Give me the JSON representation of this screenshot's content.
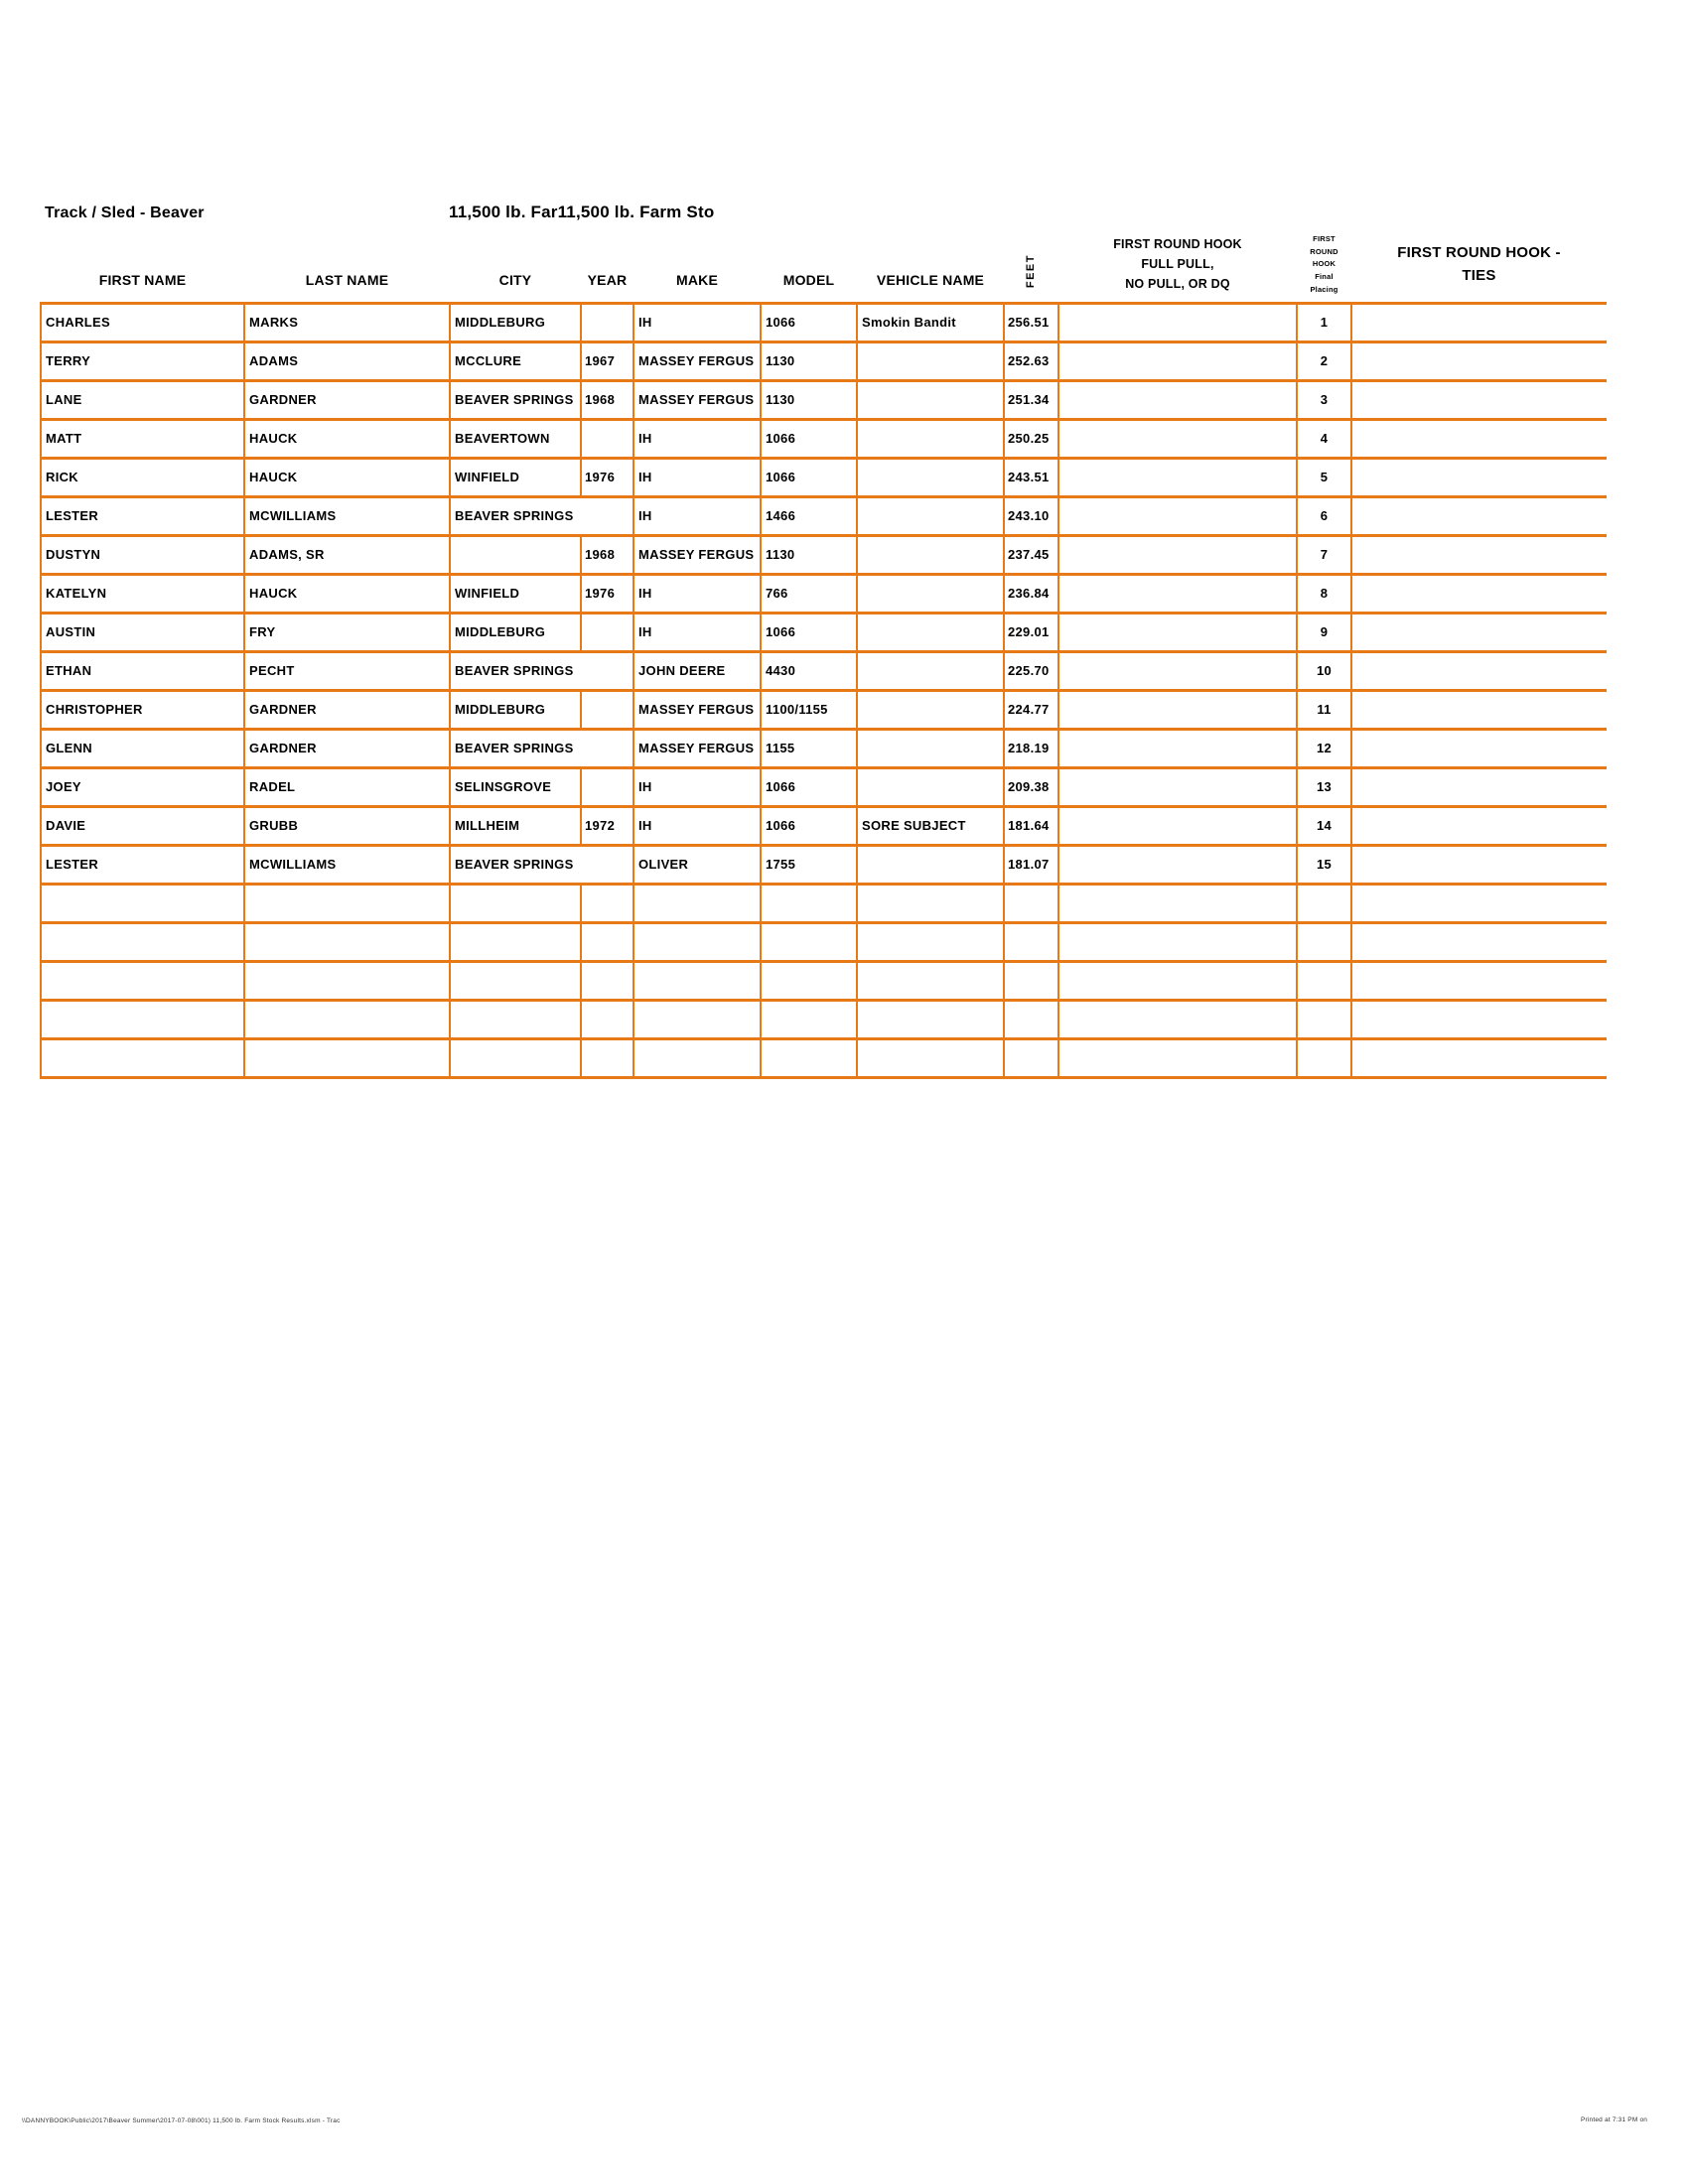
{
  "page": {
    "title_left": "Track / Sled - Beaver",
    "title_center": "11,500 lb. Far11,500 lb. Farm Sto",
    "footer_left": "\\\\DANNYBOOK\\Public\\2017\\Beaver Summer\\2017-07-08\\001) 11,500 lb. Farm Stock Results.xlsm - Trac",
    "footer_right": "Printed at 7:31 PM on"
  },
  "colors": {
    "table_border": "#E87917",
    "text": "#000000",
    "background": "#FFFFFF"
  },
  "table": {
    "headers": {
      "first_name": "FIRST NAME",
      "last_name": "LAST NAME",
      "city": "CITY",
      "year": "YEAR",
      "make": "MAKE",
      "model": "MODEL",
      "vehicle_name": "VEHICLE NAME",
      "feet": "FEET",
      "full_pull": "FIRST ROUND HOOK\nFULL PULL,\nNO PULL, OR DQ",
      "placing": "FIRST\nROUND\nHOOK\nFinal\nPlacing",
      "ties": "FIRST ROUND HOOK -\nTIES"
    },
    "rows": [
      {
        "first": "CHARLES",
        "last": "MARKS",
        "city": "MIDDLEBURG",
        "year": "",
        "merged": false,
        "make": "IH",
        "model": "1066",
        "vehicle": "Smokin Bandit",
        "feet": "256.51",
        "hook": "",
        "place": "1",
        "ties": ""
      },
      {
        "first": "TERRY",
        "last": "ADAMS",
        "city": "MCCLURE",
        "year": "1967",
        "merged": false,
        "make": "MASSEY FERGUS",
        "model": "1130",
        "vehicle": "",
        "feet": "252.63",
        "hook": "",
        "place": "2",
        "ties": ""
      },
      {
        "first": "LANE",
        "last": "GARDNER",
        "city": "BEAVER SPRINGS",
        "year": "1968",
        "merged": false,
        "make": "MASSEY FERGUS",
        "model": "1130",
        "vehicle": "",
        "feet": "251.34",
        "hook": "",
        "place": "3",
        "ties": ""
      },
      {
        "first": "MATT",
        "last": "HAUCK",
        "city": "BEAVERTOWN",
        "year": "",
        "merged": false,
        "make": "IH",
        "model": "1066",
        "vehicle": "",
        "feet": "250.25",
        "hook": "",
        "place": "4",
        "ties": ""
      },
      {
        "first": "RICK",
        "last": "HAUCK",
        "city": "WINFIELD",
        "year": "1976",
        "merged": false,
        "make": "IH",
        "model": "1066",
        "vehicle": "",
        "feet": "243.51",
        "hook": "",
        "place": "5",
        "ties": ""
      },
      {
        "first": "LESTER",
        "last": "MCWILLIAMS",
        "city": "BEAVER SPRINGS",
        "year": "",
        "merged": true,
        "make": "IH",
        "model": "1466",
        "vehicle": "",
        "feet": "243.10",
        "hook": "",
        "place": "6",
        "ties": ""
      },
      {
        "first": "DUSTYN",
        "last": "ADAMS, SR",
        "city": "",
        "year": "1968",
        "merged": false,
        "make": "MASSEY FERGUS",
        "model": "1130",
        "vehicle": "",
        "feet": "237.45",
        "hook": "",
        "place": "7",
        "ties": ""
      },
      {
        "first": "KATELYN",
        "last": "HAUCK",
        "city": "WINFIELD",
        "year": "1976",
        "merged": false,
        "make": "IH",
        "model": "766",
        "vehicle": "",
        "feet": "236.84",
        "hook": "",
        "place": "8",
        "ties": ""
      },
      {
        "first": "AUSTIN",
        "last": "FRY",
        "city": "MIDDLEBURG",
        "year": "",
        "merged": false,
        "make": "IH",
        "model": "1066",
        "vehicle": "",
        "feet": "229.01",
        "hook": "",
        "place": "9",
        "ties": ""
      },
      {
        "first": "ETHAN",
        "last": "PECHT",
        "city": "BEAVER SPRINGS",
        "year": "",
        "merged": true,
        "make": "JOHN DEERE",
        "model": "4430",
        "vehicle": "",
        "feet": "225.70",
        "hook": "",
        "place": "10",
        "ties": ""
      },
      {
        "first": "CHRISTOPHER",
        "last": "GARDNER",
        "city": "MIDDLEBURG",
        "year": "",
        "merged": false,
        "make": "MASSEY FERGUS",
        "model": "1100/1155",
        "vehicle": "",
        "feet": "224.77",
        "hook": "",
        "place": "11",
        "ties": ""
      },
      {
        "first": "GLENN",
        "last": "GARDNER",
        "city": "BEAVER SPRINGS",
        "year": "",
        "merged": true,
        "make": "MASSEY FERGUS",
        "model": "1155",
        "vehicle": "",
        "feet": "218.19",
        "hook": "",
        "place": "12",
        "ties": ""
      },
      {
        "first": "JOEY",
        "last": "RADEL",
        "city": "SELINSGROVE",
        "year": "",
        "merged": false,
        "make": "IH",
        "model": "1066",
        "vehicle": "",
        "feet": "209.38",
        "hook": "",
        "place": "13",
        "ties": ""
      },
      {
        "first": "DAVIE",
        "last": "GRUBB",
        "city": "MILLHEIM",
        "year": "1972",
        "merged": false,
        "make": "IH",
        "model": "1066",
        "vehicle": "SORE SUBJECT",
        "feet": "181.64",
        "hook": "",
        "place": "14",
        "ties": ""
      },
      {
        "first": "LESTER",
        "last": "MCWILLIAMS",
        "city": "BEAVER SPRINGS",
        "year": "",
        "merged": true,
        "make": "OLIVER",
        "model": "1755",
        "vehicle": "",
        "feet": "181.07",
        "hook": "",
        "place": "15",
        "ties": ""
      }
    ],
    "empty_rows": 5
  }
}
